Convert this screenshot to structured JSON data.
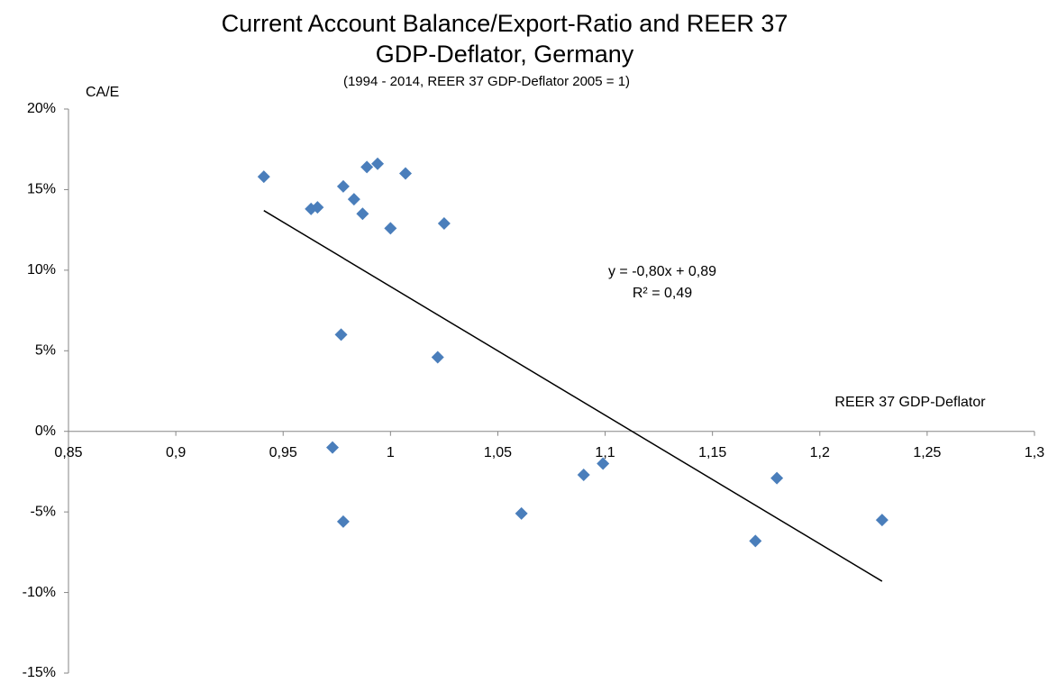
{
  "chart_data": {
    "type": "scatter",
    "title": [
      "Current Account Balance/Export-Ratio and REER 37",
      "GDP-Deflator, Germany"
    ],
    "subtitle": "(1994 - 2014, REER 37 GDP-Deflator 2005 = 1)",
    "x_label": "REER 37 GDP-Deflator",
    "y_label": "CA/E",
    "xlim": [
      0.85,
      1.3
    ],
    "ylim": [
      -15,
      20
    ],
    "xticks": [
      {
        "value": 0.85,
        "label": "0,85"
      },
      {
        "value": 0.9,
        "label": "0,9"
      },
      {
        "value": 0.95,
        "label": "0,95"
      },
      1,
      {
        "value": 1.05,
        "label": "1,05"
      },
      {
        "value": 1.1,
        "label": "1,1"
      },
      {
        "value": 1.15,
        "label": "1,15"
      },
      {
        "value": 1.2,
        "label": "1,2"
      },
      {
        "value": 1.25,
        "label": "1,25"
      },
      {
        "value": 1.3,
        "label": "1,3"
      }
    ],
    "yticks": [
      {
        "value": -15,
        "label": "-15%"
      },
      {
        "value": -10,
        "label": "-10%"
      },
      {
        "value": -5,
        "label": "-5%"
      },
      {
        "value": 0,
        "label": "0%"
      },
      {
        "value": 5,
        "label": "5%"
      },
      {
        "value": 10,
        "label": "10%"
      },
      {
        "value": 15,
        "label": "15%"
      },
      {
        "value": 20,
        "label": "20%"
      }
    ],
    "color": "#4a7ebb",
    "x": [
      0.941,
      0.963,
      0.966,
      0.978,
      0.983,
      0.989,
      0.994,
      0.987,
      1.0,
      1.007,
      1.025,
      0.977,
      1.022,
      0.973,
      0.978,
      1.061,
      1.09,
      1.099,
      1.17,
      1.18,
      1.229
    ],
    "values": [
      15.8,
      13.8,
      13.9,
      15.2,
      14.4,
      16.4,
      16.6,
      13.5,
      12.6,
      16.0,
      12.9,
      6.0,
      4.6,
      -1.0,
      -5.6,
      -5.1,
      -2.7,
      -2.0,
      -6.8,
      -2.9,
      -5.5
    ],
    "trendline": {
      "x": [
        0.941,
        1.229
      ],
      "values": [
        13.7,
        -9.3
      ],
      "color": "#000000"
    },
    "equation": "y = -0,80x + 0,89",
    "r_squared": "R² = 0,49"
  }
}
